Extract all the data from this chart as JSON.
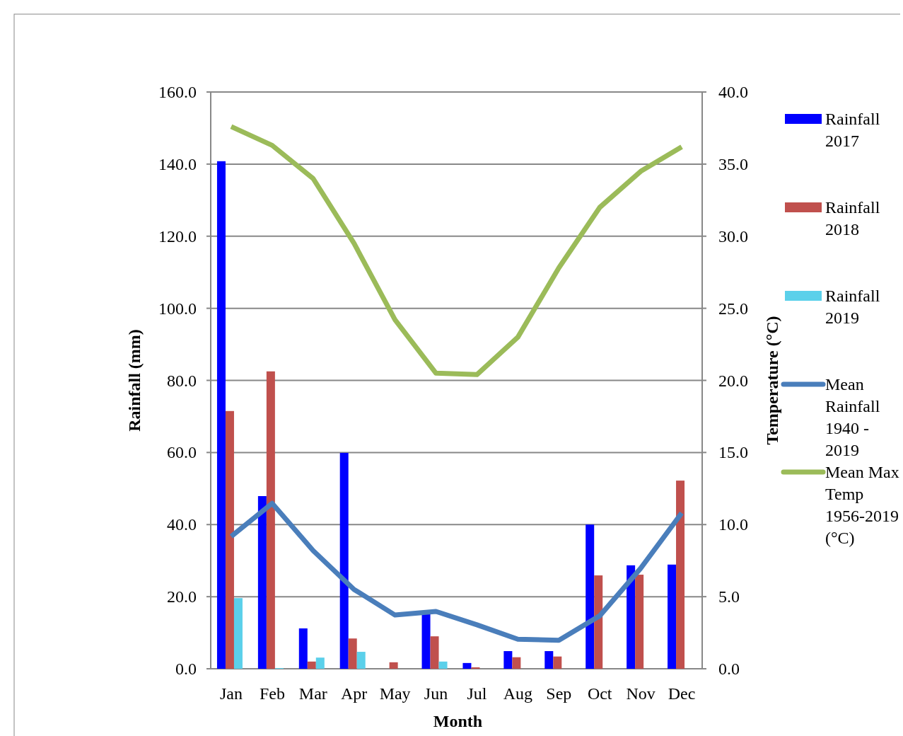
{
  "chart_data": {
    "type": "bar",
    "xlabel": "Month",
    "ylabel": "Rainfall (mm)",
    "y2label": "Temperature (°C)",
    "categories": [
      "Jan",
      "Feb",
      "Mar",
      "Apr",
      "May",
      "Jun",
      "Jul",
      "Aug",
      "Sep",
      "Oct",
      "Nov",
      "Dec"
    ],
    "series": [
      {
        "name": "Rainfall 2017",
        "color": "#0000ff",
        "values": [
          140.8,
          47.9,
          11.2,
          59.9,
          null,
          16.0,
          1.6,
          4.9,
          4.9,
          40.0,
          28.7,
          28.9
        ]
      },
      {
        "name": "Rainfall 2018",
        "color": "#c0504d",
        "values": [
          71.5,
          82.5,
          2.0,
          8.4,
          1.8,
          9.0,
          0.4,
          3.2,
          3.4,
          25.9,
          26.1,
          52.2
        ]
      },
      {
        "name": "Rainfall 2019",
        "color": "#5bd0ea",
        "values": [
          19.6,
          0.2,
          3.1,
          4.7,
          null,
          2.0,
          null,
          null,
          null,
          null,
          null,
          null
        ]
      },
      {
        "name": "Mean Rainfall 1940 - 2019",
        "type": "line",
        "color": "#4a7ebb",
        "values": [
          36.7,
          45.9,
          32.8,
          22.0,
          14.9,
          15.9,
          12.2,
          8.2,
          7.9,
          14.7,
          27.9,
          43.2
        ]
      },
      {
        "name": "Mean Max Temp 1956-2019 (°C)",
        "type": "line",
        "axis": "y2",
        "color": "#9bbb59",
        "values": [
          37.6,
          36.3,
          34.0,
          29.5,
          24.2,
          20.5,
          20.4,
          23.0,
          27.8,
          32.0,
          34.5,
          36.2
        ]
      }
    ],
    "ylim": [
      0,
      160
    ],
    "yticks": [
      {
        "value": 0,
        "label": "0.0"
      },
      {
        "value": 20,
        "label": "20.0"
      },
      {
        "value": 40,
        "label": "40.0"
      },
      {
        "value": 60,
        "label": "60.0"
      },
      {
        "value": 80,
        "label": "80.0"
      },
      {
        "value": 100,
        "label": "100.0"
      },
      {
        "value": 120,
        "label": "120.0"
      },
      {
        "value": 140,
        "label": "140.0"
      },
      {
        "value": 160,
        "label": "160.0"
      }
    ],
    "y2lim": [
      0,
      40
    ],
    "y2ticks": [
      {
        "value": 0,
        "label": "0.0"
      },
      {
        "value": 5,
        "label": "5.0"
      },
      {
        "value": 10,
        "label": "10.0"
      },
      {
        "value": 15,
        "label": "15.0"
      },
      {
        "value": 20,
        "label": "20.0"
      },
      {
        "value": 25,
        "label": "25.0"
      },
      {
        "value": 30,
        "label": "30.0"
      },
      {
        "value": 35,
        "label": "35.0"
      },
      {
        "value": 40,
        "label": "40.0"
      }
    ],
    "grid": "y",
    "legend": "right"
  }
}
